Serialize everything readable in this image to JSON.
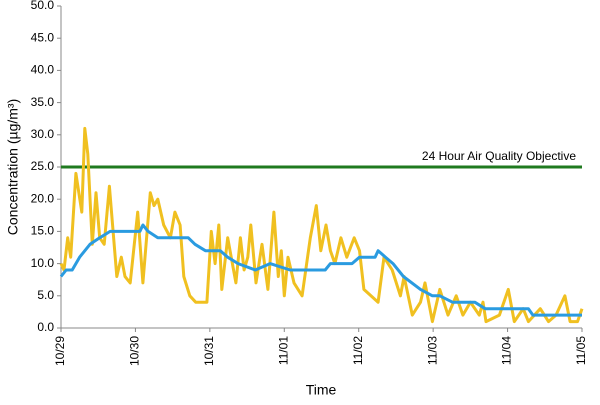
{
  "chart_data": {
    "type": "line",
    "xlabel": "Time",
    "ylabel": "Concentration (µg/m³)",
    "xlim": [
      0,
      7
    ],
    "xticks": [
      {
        "value": 0,
        "label": "10/29"
      },
      {
        "value": 1,
        "label": "10/30"
      },
      {
        "value": 2,
        "label": "10/31"
      },
      {
        "value": 3,
        "label": "11/01"
      },
      {
        "value": 4,
        "label": "11/02"
      },
      {
        "value": 5,
        "label": "11/03"
      },
      {
        "value": 6,
        "label": "11/04"
      },
      {
        "value": 7,
        "label": "11/05"
      }
    ],
    "ylim": [
      0,
      50
    ],
    "yticks": [
      {
        "value": 0,
        "label": "0.0"
      },
      {
        "value": 5,
        "label": "5.0"
      },
      {
        "value": 10,
        "label": "10.0"
      },
      {
        "value": 15,
        "label": "15.0"
      },
      {
        "value": 20,
        "label": "20.0"
      },
      {
        "value": 25,
        "label": "25.0"
      },
      {
        "value": 30,
        "label": "30.0"
      },
      {
        "value": 35,
        "label": "35.0"
      },
      {
        "value": 40,
        "label": "40.0"
      },
      {
        "value": 45,
        "label": "45.0"
      },
      {
        "value": 50,
        "label": "50.0"
      }
    ],
    "grid": false,
    "reference_lines": [
      {
        "value": 25,
        "label": "24 Hour Air Quality Objective",
        "color": "#1f7a1f"
      }
    ],
    "series": [
      {
        "color": "#f0c020",
        "x": [
          0.0,
          0.04,
          0.09,
          0.13,
          0.2,
          0.28,
          0.32,
          0.36,
          0.42,
          0.47,
          0.52,
          0.58,
          0.65,
          0.7,
          0.75,
          0.81,
          0.86,
          0.93,
          1.03,
          1.1,
          1.2,
          1.25,
          1.3,
          1.38,
          1.47,
          1.53,
          1.6,
          1.65,
          1.73,
          1.81,
          1.96,
          2.02,
          2.07,
          2.12,
          2.16,
          2.24,
          2.35,
          2.41,
          2.46,
          2.51,
          2.55,
          2.62,
          2.7,
          2.78,
          2.86,
          2.92,
          2.96,
          3.0,
          3.05,
          3.13,
          3.24,
          3.35,
          3.43,
          3.49,
          3.56,
          3.62,
          3.68,
          3.76,
          3.84,
          3.94,
          4.01,
          4.07,
          4.26,
          4.34,
          4.45,
          4.56,
          4.61,
          4.72,
          4.83,
          4.89,
          4.99,
          5.09,
          5.2,
          5.31,
          5.4,
          5.5,
          5.62,
          5.67,
          5.71,
          5.89,
          6.01,
          6.09,
          6.21,
          6.28,
          6.44,
          6.55,
          6.65,
          6.77,
          6.84,
          6.94,
          7.0
        ],
        "values": [
          10,
          9,
          14,
          11,
          24,
          18,
          31,
          27,
          13,
          21,
          14,
          13,
          22,
          15,
          8,
          11,
          8,
          7,
          18,
          7,
          21,
          19,
          20,
          16,
          14,
          18,
          16,
          8,
          5,
          4,
          4,
          15,
          10,
          16,
          6,
          14,
          7,
          14,
          9,
          11,
          16,
          7,
          13,
          6,
          18,
          8,
          12,
          5,
          11,
          7,
          5,
          14,
          19,
          12,
          16,
          12,
          10,
          14,
          11,
          14,
          12,
          6,
          4,
          11,
          9,
          5,
          8,
          2,
          4,
          7,
          1,
          6,
          2,
          5,
          2,
          4,
          2,
          4,
          1,
          2,
          6,
          1,
          3,
          1,
          3,
          1,
          2,
          5,
          1,
          1,
          3
        ]
      },
      {
        "color": "#2a9be0",
        "x": [
          0.0,
          0.07,
          0.15,
          0.25,
          0.39,
          0.52,
          0.66,
          1.06,
          1.1,
          1.17,
          1.3,
          1.71,
          1.8,
          1.94,
          2.14,
          2.24,
          2.38,
          2.61,
          2.81,
          3.08,
          3.55,
          3.62,
          3.91,
          4.01,
          4.22,
          4.26,
          4.36,
          4.46,
          4.6,
          4.83,
          4.99,
          5.09,
          5.26,
          5.56,
          5.7,
          6.28,
          6.34,
          7.0
        ],
        "values": [
          8,
          9,
          9,
          11,
          13,
          14,
          15,
          15,
          16,
          15,
          14,
          14,
          13,
          12,
          12,
          11,
          10,
          9,
          10,
          9,
          9,
          10,
          10,
          11,
          11,
          12,
          11,
          10,
          8,
          6,
          5,
          5,
          4,
          4,
          3,
          3,
          2,
          2
        ]
      }
    ]
  }
}
